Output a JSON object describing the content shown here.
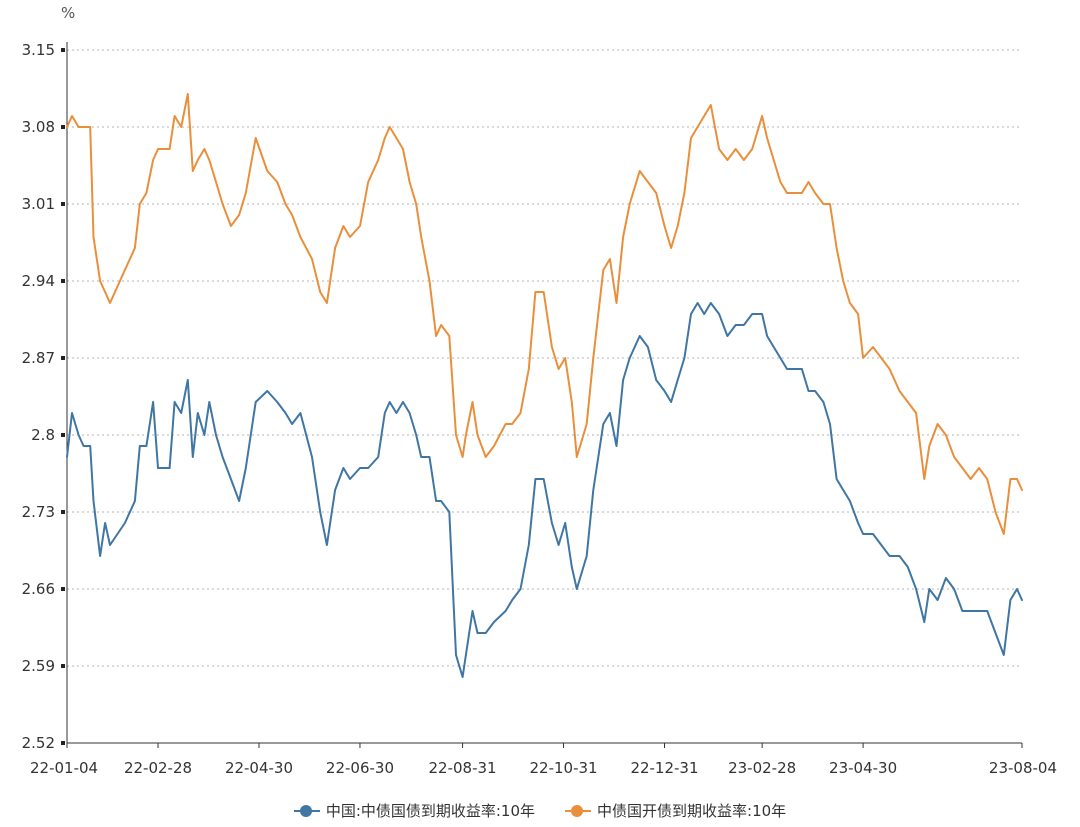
{
  "chart_data": {
    "type": "line",
    "unit": "%",
    "ylim": [
      2.52,
      3.15
    ],
    "y_ticks": [
      "3.15",
      "3.08",
      "3.01",
      "2.94",
      "2.87",
      "2.8",
      "2.73",
      "2.66",
      "2.59",
      "2.52"
    ],
    "x_ticks": [
      "22-01-04",
      "22-02-28",
      "22-04-30",
      "22-06-30",
      "22-08-31",
      "22-10-31",
      "22-12-31",
      "23-02-28",
      "23-04-30",
      "23-08-04"
    ],
    "x_tick_dates": [
      "2022-01-04",
      "2022-02-28",
      "2022-04-30",
      "2022-06-30",
      "2022-08-31",
      "2022-10-31",
      "2022-12-31",
      "2023-02-28",
      "2023-04-30",
      "2023-08-04"
    ],
    "grid": true,
    "legend_position": "bottom",
    "series": [
      {
        "name": "中国:中债国债到期收益率:10年",
        "color": "#3f76a3",
        "points": [
          [
            "2022-01-04",
            2.78
          ],
          [
            "2022-01-07",
            2.82
          ],
          [
            "2022-01-11",
            2.8
          ],
          [
            "2022-01-14",
            2.79
          ],
          [
            "2022-01-18",
            2.79
          ],
          [
            "2022-01-20",
            2.74
          ],
          [
            "2022-01-24",
            2.69
          ],
          [
            "2022-01-27",
            2.72
          ],
          [
            "2022-01-30",
            2.7
          ],
          [
            "2022-02-08",
            2.72
          ],
          [
            "2022-02-14",
            2.74
          ],
          [
            "2022-02-17",
            2.79
          ],
          [
            "2022-02-21",
            2.79
          ],
          [
            "2022-02-25",
            2.83
          ],
          [
            "2022-02-28",
            2.77
          ],
          [
            "2022-03-07",
            2.77
          ],
          [
            "2022-03-10",
            2.83
          ],
          [
            "2022-03-14",
            2.82
          ],
          [
            "2022-03-18",
            2.85
          ],
          [
            "2022-03-21",
            2.78
          ],
          [
            "2022-03-24",
            2.82
          ],
          [
            "2022-03-28",
            2.8
          ],
          [
            "2022-03-31",
            2.83
          ],
          [
            "2022-04-04",
            2.8
          ],
          [
            "2022-04-08",
            2.78
          ],
          [
            "2022-04-13",
            2.76
          ],
          [
            "2022-04-18",
            2.74
          ],
          [
            "2022-04-22",
            2.77
          ],
          [
            "2022-04-28",
            2.83
          ],
          [
            "2022-05-05",
            2.84
          ],
          [
            "2022-05-11",
            2.83
          ],
          [
            "2022-05-16",
            2.82
          ],
          [
            "2022-05-20",
            2.81
          ],
          [
            "2022-05-25",
            2.82
          ],
          [
            "2022-06-01",
            2.78
          ],
          [
            "2022-06-06",
            2.73
          ],
          [
            "2022-06-10",
            2.7
          ],
          [
            "2022-06-15",
            2.75
          ],
          [
            "2022-06-20",
            2.77
          ],
          [
            "2022-06-24",
            2.76
          ],
          [
            "2022-06-30",
            2.77
          ],
          [
            "2022-07-05",
            2.77
          ],
          [
            "2022-07-11",
            2.78
          ],
          [
            "2022-07-15",
            2.82
          ],
          [
            "2022-07-18",
            2.83
          ],
          [
            "2022-07-22",
            2.82
          ],
          [
            "2022-07-26",
            2.83
          ],
          [
            "2022-07-30",
            2.82
          ],
          [
            "2022-08-03",
            2.8
          ],
          [
            "2022-08-06",
            2.78
          ],
          [
            "2022-08-11",
            2.78
          ],
          [
            "2022-08-15",
            2.74
          ],
          [
            "2022-08-18",
            2.74
          ],
          [
            "2022-08-23",
            2.73
          ],
          [
            "2022-08-27",
            2.6
          ],
          [
            "2022-08-31",
            2.58
          ],
          [
            "2022-09-02",
            2.6
          ],
          [
            "2022-09-06",
            2.64
          ],
          [
            "2022-09-09",
            2.62
          ],
          [
            "2022-09-14",
            2.62
          ],
          [
            "2022-09-19",
            2.63
          ],
          [
            "2022-09-26",
            2.64
          ],
          [
            "2022-09-30",
            2.65
          ],
          [
            "2022-10-05",
            2.66
          ],
          [
            "2022-10-10",
            2.7
          ],
          [
            "2022-10-14",
            2.76
          ],
          [
            "2022-10-19",
            2.76
          ],
          [
            "2022-10-24",
            2.72
          ],
          [
            "2022-10-28",
            2.7
          ],
          [
            "2022-11-01",
            2.72
          ],
          [
            "2022-11-05",
            2.68
          ],
          [
            "2022-11-08",
            2.66
          ],
          [
            "2022-11-14",
            2.69
          ],
          [
            "2022-11-18",
            2.75
          ],
          [
            "2022-11-24",
            2.81
          ],
          [
            "2022-11-28",
            2.82
          ],
          [
            "2022-12-02",
            2.79
          ],
          [
            "2022-12-06",
            2.85
          ],
          [
            "2022-12-10",
            2.87
          ],
          [
            "2022-12-16",
            2.89
          ],
          [
            "2022-12-21",
            2.88
          ],
          [
            "2022-12-26",
            2.85
          ],
          [
            "2022-12-31",
            2.84
          ],
          [
            "2023-01-04",
            2.83
          ],
          [
            "2023-01-08",
            2.85
          ],
          [
            "2023-01-12",
            2.87
          ],
          [
            "2023-01-16",
            2.91
          ],
          [
            "2023-01-20",
            2.92
          ],
          [
            "2023-01-24",
            2.91
          ],
          [
            "2023-01-28",
            2.92
          ],
          [
            "2023-02-02",
            2.91
          ],
          [
            "2023-02-07",
            2.89
          ],
          [
            "2023-02-12",
            2.9
          ],
          [
            "2023-02-17",
            2.9
          ],
          [
            "2023-02-22",
            2.91
          ],
          [
            "2023-02-28",
            2.91
          ],
          [
            "2023-03-03",
            2.89
          ],
          [
            "2023-03-07",
            2.88
          ],
          [
            "2023-03-11",
            2.87
          ],
          [
            "2023-03-15",
            2.86
          ],
          [
            "2023-03-20",
            2.86
          ],
          [
            "2023-03-24",
            2.86
          ],
          [
            "2023-03-28",
            2.84
          ],
          [
            "2023-04-01",
            2.84
          ],
          [
            "2023-04-06",
            2.83
          ],
          [
            "2023-04-10",
            2.81
          ],
          [
            "2023-04-14",
            2.76
          ],
          [
            "2023-04-18",
            2.75
          ],
          [
            "2023-04-22",
            2.74
          ],
          [
            "2023-04-27",
            2.72
          ],
          [
            "2023-04-30",
            2.71
          ],
          [
            "2023-05-06",
            2.71
          ],
          [
            "2023-05-11",
            2.7
          ],
          [
            "2023-05-16",
            2.69
          ],
          [
            "2023-05-22",
            2.69
          ],
          [
            "2023-05-27",
            2.68
          ],
          [
            "2023-06-01",
            2.66
          ],
          [
            "2023-06-06",
            2.63
          ],
          [
            "2023-06-09",
            2.66
          ],
          [
            "2023-06-14",
            2.65
          ],
          [
            "2023-06-19",
            2.67
          ],
          [
            "2023-06-24",
            2.66
          ],
          [
            "2023-06-29",
            2.64
          ],
          [
            "2023-07-04",
            2.64
          ],
          [
            "2023-07-09",
            2.64
          ],
          [
            "2023-07-14",
            2.64
          ],
          [
            "2023-07-19",
            2.62
          ],
          [
            "2023-07-24",
            2.6
          ],
          [
            "2023-07-28",
            2.65
          ],
          [
            "2023-08-01",
            2.66
          ],
          [
            "2023-08-04",
            2.65
          ]
        ]
      },
      {
        "name": "中债国开债到期收益率:10年",
        "color": "#e98f3c",
        "points": [
          [
            "2022-01-04",
            3.08
          ],
          [
            "2022-01-07",
            3.09
          ],
          [
            "2022-01-11",
            3.08
          ],
          [
            "2022-01-14",
            3.08
          ],
          [
            "2022-01-18",
            3.08
          ],
          [
            "2022-01-20",
            2.98
          ],
          [
            "2022-01-24",
            2.94
          ],
          [
            "2022-01-27",
            2.93
          ],
          [
            "2022-01-30",
            2.92
          ],
          [
            "2022-02-08",
            2.95
          ],
          [
            "2022-02-14",
            2.97
          ],
          [
            "2022-02-17",
            3.01
          ],
          [
            "2022-02-21",
            3.02
          ],
          [
            "2022-02-25",
            3.05
          ],
          [
            "2022-02-28",
            3.06
          ],
          [
            "2022-03-07",
            3.06
          ],
          [
            "2022-03-10",
            3.09
          ],
          [
            "2022-03-14",
            3.08
          ],
          [
            "2022-03-18",
            3.11
          ],
          [
            "2022-03-21",
            3.04
          ],
          [
            "2022-03-24",
            3.05
          ],
          [
            "2022-03-28",
            3.06
          ],
          [
            "2022-03-31",
            3.05
          ],
          [
            "2022-04-04",
            3.03
          ],
          [
            "2022-04-08",
            3.01
          ],
          [
            "2022-04-13",
            2.99
          ],
          [
            "2022-04-18",
            3.0
          ],
          [
            "2022-04-22",
            3.02
          ],
          [
            "2022-04-28",
            3.07
          ],
          [
            "2022-05-05",
            3.04
          ],
          [
            "2022-05-11",
            3.03
          ],
          [
            "2022-05-16",
            3.01
          ],
          [
            "2022-05-20",
            3.0
          ],
          [
            "2022-05-25",
            2.98
          ],
          [
            "2022-06-01",
            2.96
          ],
          [
            "2022-06-06",
            2.93
          ],
          [
            "2022-06-10",
            2.92
          ],
          [
            "2022-06-15",
            2.97
          ],
          [
            "2022-06-20",
            2.99
          ],
          [
            "2022-06-24",
            2.98
          ],
          [
            "2022-06-30",
            2.99
          ],
          [
            "2022-07-05",
            3.03
          ],
          [
            "2022-07-11",
            3.05
          ],
          [
            "2022-07-15",
            3.07
          ],
          [
            "2022-07-18",
            3.08
          ],
          [
            "2022-07-22",
            3.07
          ],
          [
            "2022-07-26",
            3.06
          ],
          [
            "2022-07-30",
            3.03
          ],
          [
            "2022-08-03",
            3.01
          ],
          [
            "2022-08-06",
            2.98
          ],
          [
            "2022-08-11",
            2.94
          ],
          [
            "2022-08-15",
            2.89
          ],
          [
            "2022-08-18",
            2.9
          ],
          [
            "2022-08-23",
            2.89
          ],
          [
            "2022-08-27",
            2.8
          ],
          [
            "2022-08-31",
            2.78
          ],
          [
            "2022-09-02",
            2.8
          ],
          [
            "2022-09-06",
            2.83
          ],
          [
            "2022-09-09",
            2.8
          ],
          [
            "2022-09-14",
            2.78
          ],
          [
            "2022-09-19",
            2.79
          ],
          [
            "2022-09-26",
            2.81
          ],
          [
            "2022-09-30",
            2.81
          ],
          [
            "2022-10-05",
            2.82
          ],
          [
            "2022-10-10",
            2.86
          ],
          [
            "2022-10-14",
            2.93
          ],
          [
            "2022-10-19",
            2.93
          ],
          [
            "2022-10-24",
            2.88
          ],
          [
            "2022-10-28",
            2.86
          ],
          [
            "2022-11-01",
            2.87
          ],
          [
            "2022-11-05",
            2.83
          ],
          [
            "2022-11-08",
            2.78
          ],
          [
            "2022-11-14",
            2.81
          ],
          [
            "2022-11-18",
            2.87
          ],
          [
            "2022-11-24",
            2.95
          ],
          [
            "2022-11-28",
            2.96
          ],
          [
            "2022-12-02",
            2.92
          ],
          [
            "2022-12-06",
            2.98
          ],
          [
            "2022-12-10",
            3.01
          ],
          [
            "2022-12-16",
            3.04
          ],
          [
            "2022-12-21",
            3.03
          ],
          [
            "2022-12-26",
            3.02
          ],
          [
            "2022-12-31",
            2.99
          ],
          [
            "2023-01-04",
            2.97
          ],
          [
            "2023-01-08",
            2.99
          ],
          [
            "2023-01-12",
            3.02
          ],
          [
            "2023-01-16",
            3.07
          ],
          [
            "2023-01-20",
            3.08
          ],
          [
            "2023-01-24",
            3.09
          ],
          [
            "2023-01-28",
            3.1
          ],
          [
            "2023-02-02",
            3.06
          ],
          [
            "2023-02-07",
            3.05
          ],
          [
            "2023-02-12",
            3.06
          ],
          [
            "2023-02-17",
            3.05
          ],
          [
            "2023-02-22",
            3.06
          ],
          [
            "2023-02-28",
            3.09
          ],
          [
            "2023-03-03",
            3.07
          ],
          [
            "2023-03-07",
            3.05
          ],
          [
            "2023-03-11",
            3.03
          ],
          [
            "2023-03-15",
            3.02
          ],
          [
            "2023-03-20",
            3.02
          ],
          [
            "2023-03-24",
            3.02
          ],
          [
            "2023-03-28",
            3.03
          ],
          [
            "2023-04-01",
            3.02
          ],
          [
            "2023-04-06",
            3.01
          ],
          [
            "2023-04-10",
            3.01
          ],
          [
            "2023-04-14",
            2.97
          ],
          [
            "2023-04-18",
            2.94
          ],
          [
            "2023-04-22",
            2.92
          ],
          [
            "2023-04-27",
            2.91
          ],
          [
            "2023-04-30",
            2.87
          ],
          [
            "2023-05-06",
            2.88
          ],
          [
            "2023-05-11",
            2.87
          ],
          [
            "2023-05-16",
            2.86
          ],
          [
            "2023-05-22",
            2.84
          ],
          [
            "2023-05-27",
            2.83
          ],
          [
            "2023-06-01",
            2.82
          ],
          [
            "2023-06-06",
            2.76
          ],
          [
            "2023-06-09",
            2.79
          ],
          [
            "2023-06-14",
            2.81
          ],
          [
            "2023-06-19",
            2.8
          ],
          [
            "2023-06-24",
            2.78
          ],
          [
            "2023-06-29",
            2.77
          ],
          [
            "2023-07-04",
            2.76
          ],
          [
            "2023-07-09",
            2.77
          ],
          [
            "2023-07-14",
            2.76
          ],
          [
            "2023-07-19",
            2.73
          ],
          [
            "2023-07-24",
            2.71
          ],
          [
            "2023-07-28",
            2.76
          ],
          [
            "2023-08-01",
            2.76
          ],
          [
            "2023-08-04",
            2.75
          ]
        ]
      }
    ]
  }
}
